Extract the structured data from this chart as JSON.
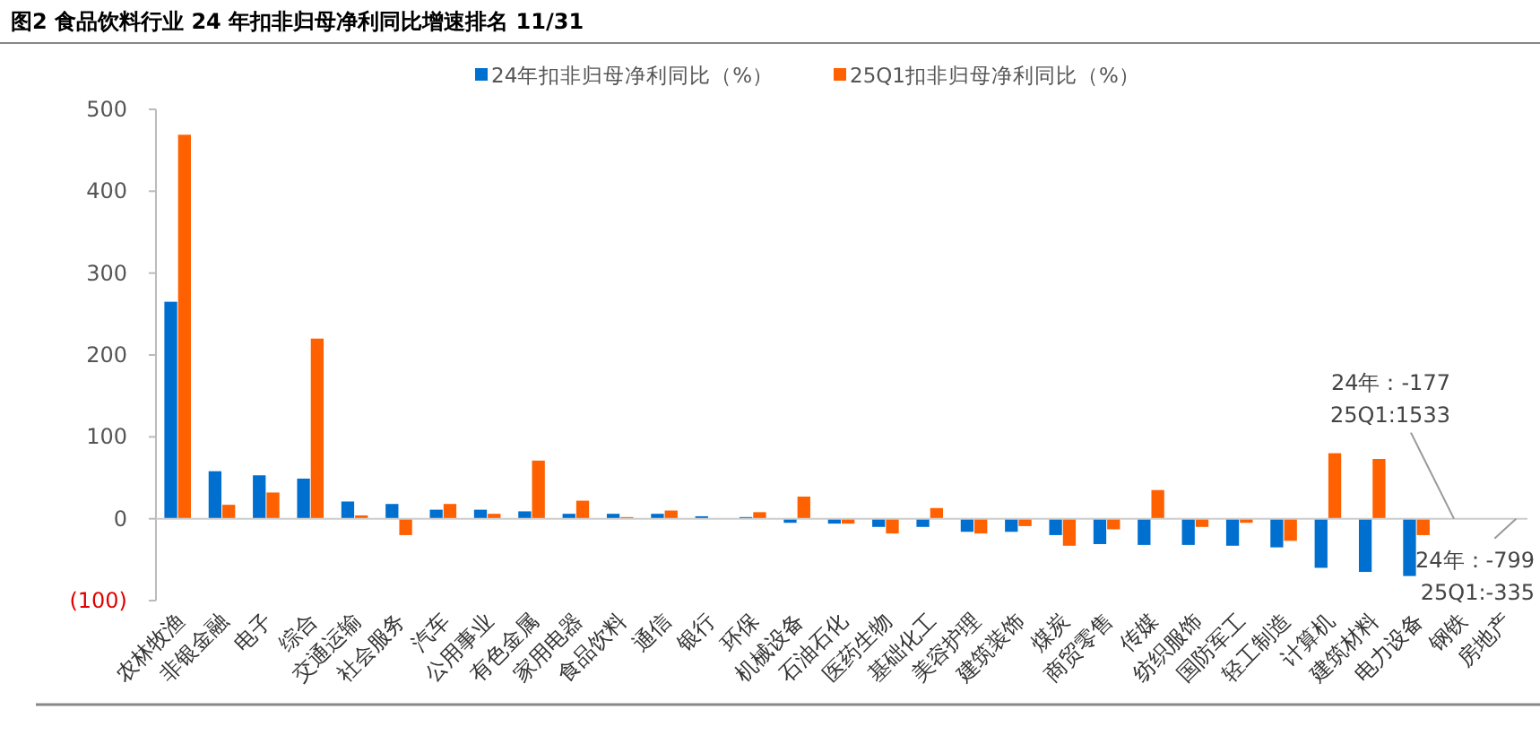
{
  "chart_data": {
    "type": "bar",
    "title": "图2  食品饮料行业 24 年扣非归母净利同比增速排名 11/31",
    "categories": [
      "农林牧渔",
      "非银金融",
      "电子",
      "综合",
      "交通运输",
      "社会服务",
      "汽车",
      "公用事业",
      "有色金属",
      "家用电器",
      "食品饮料",
      "通信",
      "银行",
      "环保",
      "机械设备",
      "石油石化",
      "医药生物",
      "基础化工",
      "美容护理",
      "建筑装饰",
      "煤炭",
      "商贸零售",
      "传媒",
      "纺织服饰",
      "国防军工",
      "轻工制造",
      "计算机",
      "建筑材料",
      "电力设备",
      "钢铁",
      "房地产"
    ],
    "series": [
      {
        "name": "24年扣非归母净利同比（%）",
        "color": "#0070d0",
        "values": [
          265,
          58,
          53,
          49,
          21,
          18,
          11,
          11,
          9,
          6,
          6,
          6,
          3,
          2,
          -5,
          -6,
          -10,
          -10,
          -16,
          -16,
          -20,
          -31,
          -32,
          -32,
          -33,
          -35,
          -60,
          -65,
          -70,
          null,
          null
        ]
      },
      {
        "name": "25Q1扣非归母净利同比（%）",
        "color": "#ff6000",
        "values": [
          469,
          17,
          32,
          220,
          4,
          -20,
          18,
          6,
          71,
          22,
          2,
          10,
          0,
          8,
          27,
          -6,
          -18,
          13,
          -18,
          -9,
          -33,
          -13,
          35,
          -10,
          -5,
          -27,
          80,
          73,
          -20,
          null,
          null
        ]
      }
    ],
    "ylim": [
      -100,
      500
    ],
    "yticks": [
      {
        "value": -100,
        "label": "(100)"
      },
      0,
      100,
      200,
      300,
      400,
      500
    ],
    "legend": "top",
    "annotations": [
      "24年：-177",
      "25Q1:1533",
      "24年：-799",
      "25Q1:-335"
    ]
  }
}
